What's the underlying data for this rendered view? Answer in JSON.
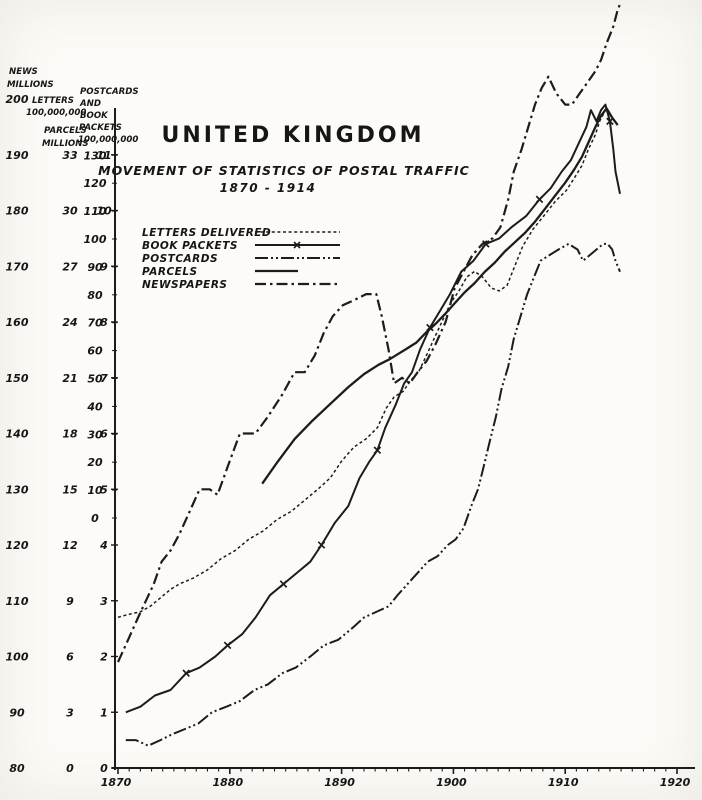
{
  "page": {
    "title": "UNITED KINGDOM",
    "subtitle": "MOVEMENT OF STATISTICS OF POSTAL TRAFFIC",
    "period": "1870 - 1914"
  },
  "axes_headers": {
    "news_line1": "NEWS",
    "news_line2": "MILLIONS",
    "letters_line1": "LETTERS",
    "letters_line2": "100,000,000",
    "parcels_line1": "PARCELS",
    "parcels_line2": "MILLIONS",
    "postcards_line1": "POSTCARDS",
    "postcards_line2": "AND",
    "postcards_line3": "BOOK",
    "postcards_line4": "PACKETS",
    "postcards_line5": "100,000,000"
  },
  "legend": {
    "items": [
      {
        "label": "LETTERS DELIVERED",
        "series": "letters"
      },
      {
        "label": "BOOK PACKETS",
        "series": "book_packets"
      },
      {
        "label": "POSTCARDS",
        "series": "postcards"
      },
      {
        "label": "PARCELS",
        "series": "parcels"
      },
      {
        "label": "NEWSPAPERS",
        "series": "newspapers"
      }
    ]
  },
  "chart_data": {
    "type": "line",
    "title": "United Kingdom — Movement of Statistics of Postal Traffic 1870-1914",
    "grid": false,
    "legend_position": "inside-upper-left",
    "x_axis": {
      "label_ticks": [
        1870,
        1880,
        1890,
        1900,
        1910,
        1920
      ],
      "range": [
        1870,
        1920
      ],
      "minor_tick_every_years": 1
    },
    "y_scales": [
      {
        "id": "news",
        "name": "Newspapers delivered (millions)",
        "col_x": 17,
        "ticks": [
          200,
          190,
          180,
          170,
          160,
          150,
          140,
          130,
          120,
          110,
          100,
          90,
          80
        ]
      },
      {
        "id": "parcels",
        "name": "Parcels (millions)",
        "col_x": 70,
        "ticks": [
          33,
          30,
          27,
          24,
          21,
          18,
          15,
          12,
          9,
          6,
          3,
          0
        ]
      },
      {
        "id": "letters",
        "name": "Letters delivered (scale ticks, header 100,000,000; printed zero sits mid-chart)",
        "col_x": 95,
        "ticks": [
          130,
          120,
          110,
          100,
          90,
          80,
          70,
          60,
          50,
          40,
          30,
          20,
          10,
          0
        ]
      },
      {
        "id": "postcards",
        "name": "Postcards and book packets (100,000,000)",
        "col_x": 104,
        "ticks": [
          11,
          10,
          9,
          8,
          7,
          6,
          5,
          4,
          3,
          2,
          1,
          0
        ]
      }
    ],
    "series": [
      {
        "name": "letters_delivered",
        "legend_label": "LETTERS DELIVERED",
        "scale": "letters",
        "line_style": "dashed",
        "points": [
          [
            1870,
            54
          ],
          [
            1870.9,
            55
          ],
          [
            1872,
            56
          ],
          [
            1872.9,
            58
          ],
          [
            1873.8,
            61
          ],
          [
            1874.7,
            64
          ],
          [
            1875.5,
            66
          ],
          [
            1876.7,
            68
          ],
          [
            1878,
            71
          ],
          [
            1879.2,
            75
          ],
          [
            1880.5,
            78
          ],
          [
            1881.7,
            82
          ],
          [
            1883,
            85
          ],
          [
            1884.2,
            89
          ],
          [
            1885.5,
            92
          ],
          [
            1886.7,
            96
          ],
          [
            1887.9,
            100
          ],
          [
            1889,
            104
          ],
          [
            1890,
            110
          ],
          [
            1891.1,
            115
          ],
          [
            1892.2,
            118
          ],
          [
            1893.2,
            122
          ],
          [
            1894,
            129
          ],
          [
            1894.7,
            133
          ],
          [
            1895.5,
            135
          ],
          [
            1896.2,
            139
          ],
          [
            1896.9,
            142
          ],
          [
            1897.6,
            148
          ],
          [
            1898.4,
            155
          ],
          [
            1899.1,
            161
          ],
          [
            1899.8,
            167
          ],
          [
            1900.5,
            171
          ],
          [
            1901.2,
            176
          ],
          [
            1901.9,
            178
          ],
          [
            1902.6,
            176
          ],
          [
            1903.4,
            172
          ],
          [
            1904.1,
            171
          ],
          [
            1904.8,
            173
          ],
          [
            1905.5,
            180
          ],
          [
            1906.2,
            187
          ],
          [
            1907.1,
            193
          ],
          [
            1908.1,
            198
          ],
          [
            1909.1,
            203
          ],
          [
            1910.1,
            207
          ],
          [
            1910.9,
            212
          ],
          [
            1911.5,
            216
          ],
          [
            1912.1,
            222
          ],
          [
            1912.7,
            227
          ],
          [
            1913.1,
            232
          ],
          [
            1913.5,
            235
          ]
        ]
      },
      {
        "name": "book_packets",
        "legend_label": "BOOK PACKETS",
        "scale": "postcards",
        "line_style": "solid-x",
        "marker_indices": [
          4,
          7,
          11,
          14,
          19,
          25,
          30,
          34,
          44
        ],
        "points": [
          [
            1870.7,
            1.0
          ],
          [
            1872,
            1.1
          ],
          [
            1873.3,
            1.3
          ],
          [
            1874.7,
            1.4
          ],
          [
            1876.1,
            1.7
          ],
          [
            1877.3,
            1.8
          ],
          [
            1878.7,
            2.0
          ],
          [
            1879.8,
            2.2
          ],
          [
            1881.1,
            2.4
          ],
          [
            1882.3,
            2.7
          ],
          [
            1883.6,
            3.1
          ],
          [
            1884.8,
            3.3
          ],
          [
            1886,
            3.5
          ],
          [
            1887.2,
            3.7
          ],
          [
            1888.2,
            4.0
          ],
          [
            1889.4,
            4.4
          ],
          [
            1890.6,
            4.7
          ],
          [
            1891.6,
            5.2
          ],
          [
            1892.5,
            5.5
          ],
          [
            1893.2,
            5.7
          ],
          [
            1893.9,
            6.1
          ],
          [
            1894.8,
            6.5
          ],
          [
            1895.6,
            6.9
          ],
          [
            1896.3,
            7.1
          ],
          [
            1897,
            7.5
          ],
          [
            1897.9,
            7.9
          ],
          [
            1898.8,
            8.2
          ],
          [
            1899.7,
            8.5
          ],
          [
            1900.7,
            8.9
          ],
          [
            1901.8,
            9.1
          ],
          [
            1902.9,
            9.4
          ],
          [
            1904.1,
            9.5
          ],
          [
            1905.2,
            9.7
          ],
          [
            1906.5,
            9.9
          ],
          [
            1907.7,
            10.2
          ],
          [
            1908.7,
            10.4
          ],
          [
            1909.7,
            10.7
          ],
          [
            1910.5,
            10.9
          ],
          [
            1911.2,
            11.2
          ],
          [
            1911.9,
            11.5
          ],
          [
            1912.3,
            11.8
          ],
          [
            1912.8,
            11.6
          ],
          [
            1913.2,
            11.8
          ],
          [
            1913.6,
            11.9
          ],
          [
            1914,
            11.6
          ],
          [
            1914.3,
            11.1
          ],
          [
            1914.5,
            10.7
          ],
          [
            1914.9,
            10.3
          ]
        ]
      },
      {
        "name": "postcards",
        "legend_label": "POSTCARDS",
        "scale": "postcards",
        "line_style": "dash-dot-dot",
        "points": [
          [
            1870.7,
            0.5
          ],
          [
            1871.6,
            0.5
          ],
          [
            1872.7,
            0.4
          ],
          [
            1873.8,
            0.5
          ],
          [
            1874.8,
            0.6
          ],
          [
            1876,
            0.7
          ],
          [
            1877.2,
            0.8
          ],
          [
            1878.4,
            1.0
          ],
          [
            1879.7,
            1.1
          ],
          [
            1880.9,
            1.2
          ],
          [
            1882.2,
            1.4
          ],
          [
            1883.4,
            1.5
          ],
          [
            1884.7,
            1.7
          ],
          [
            1885.9,
            1.8
          ],
          [
            1887.2,
            2.0
          ],
          [
            1888.4,
            2.2
          ],
          [
            1889.7,
            2.3
          ],
          [
            1890.9,
            2.5
          ],
          [
            1892,
            2.7
          ],
          [
            1893.1,
            2.8
          ],
          [
            1894.2,
            2.9
          ],
          [
            1895,
            3.1
          ],
          [
            1895.9,
            3.3
          ],
          [
            1896.8,
            3.5
          ],
          [
            1897.7,
            3.7
          ],
          [
            1898.6,
            3.8
          ],
          [
            1899.5,
            4.0
          ],
          [
            1900.2,
            4.1
          ],
          [
            1900.9,
            4.3
          ],
          [
            1901.6,
            4.7
          ],
          [
            1902.2,
            5.0
          ],
          [
            1902.7,
            5.4
          ],
          [
            1903.3,
            5.9
          ],
          [
            1903.8,
            6.3
          ],
          [
            1904.3,
            6.8
          ],
          [
            1904.9,
            7.2
          ],
          [
            1905.4,
            7.7
          ],
          [
            1906,
            8.1
          ],
          [
            1906.6,
            8.5
          ],
          [
            1907.2,
            8.8
          ],
          [
            1907.8,
            9.1
          ],
          [
            1908.6,
            9.2
          ],
          [
            1909.4,
            9.3
          ],
          [
            1910.3,
            9.4
          ],
          [
            1911.1,
            9.3
          ],
          [
            1911.6,
            9.1
          ],
          [
            1912.2,
            9.2
          ],
          [
            1912.8,
            9.3
          ],
          [
            1913.4,
            9.4
          ],
          [
            1913.8,
            9.4
          ],
          [
            1914.2,
            9.3
          ],
          [
            1914.5,
            9.1
          ],
          [
            1914.9,
            8.9
          ]
        ]
      },
      {
        "name": "parcels",
        "legend_label": "PARCELS",
        "scale": "parcels",
        "line_style": "solid",
        "points": [
          [
            1882.9,
            15.3
          ],
          [
            1884.3,
            16.5
          ],
          [
            1885.8,
            17.7
          ],
          [
            1887.4,
            18.7
          ],
          [
            1889,
            19.6
          ],
          [
            1890.6,
            20.5
          ],
          [
            1892,
            21.2
          ],
          [
            1893.3,
            21.7
          ],
          [
            1894.3,
            22.0
          ],
          [
            1895.1,
            22.3
          ],
          [
            1895.9,
            22.6
          ],
          [
            1896.7,
            22.9
          ],
          [
            1897.5,
            23.4
          ],
          [
            1898.4,
            23.9
          ],
          [
            1899.2,
            24.4
          ],
          [
            1900.1,
            25.0
          ],
          [
            1901,
            25.6
          ],
          [
            1901.9,
            26.1
          ],
          [
            1902.8,
            26.7
          ],
          [
            1903.7,
            27.2
          ],
          [
            1904.6,
            27.8
          ],
          [
            1905.5,
            28.3
          ],
          [
            1906.4,
            28.8
          ],
          [
            1907.3,
            29.4
          ],
          [
            1908.2,
            30.1
          ],
          [
            1909.1,
            30.8
          ],
          [
            1910,
            31.5
          ],
          [
            1910.8,
            32.2
          ],
          [
            1911.5,
            32.9
          ],
          [
            1912.1,
            33.7
          ],
          [
            1912.7,
            34.5
          ],
          [
            1913.2,
            35.1
          ],
          [
            1913.7,
            35.5
          ],
          [
            1914.2,
            35.0
          ],
          [
            1914.7,
            34.6
          ]
        ]
      },
      {
        "name": "newspapers",
        "legend_label": "NEWSPAPERS",
        "scale": "news",
        "line_style": "dash-dot",
        "points": [
          [
            1870,
            99
          ],
          [
            1870.9,
            103
          ],
          [
            1871.8,
            107
          ],
          [
            1872.5,
            110
          ],
          [
            1873.2,
            113
          ],
          [
            1873.9,
            117
          ],
          [
            1874.7,
            119
          ],
          [
            1875.5,
            122
          ],
          [
            1876.4,
            126
          ],
          [
            1877.3,
            130
          ],
          [
            1878.2,
            130
          ],
          [
            1878.9,
            129
          ],
          [
            1879.8,
            134
          ],
          [
            1880.9,
            140
          ],
          [
            1882.3,
            140
          ],
          [
            1883.4,
            143
          ],
          [
            1884.7,
            147
          ],
          [
            1885.8,
            151
          ],
          [
            1886.7,
            151
          ],
          [
            1887.6,
            154
          ],
          [
            1888.4,
            158
          ],
          [
            1889.2,
            161
          ],
          [
            1890.1,
            163
          ],
          [
            1891.2,
            164
          ],
          [
            1892.2,
            165
          ],
          [
            1893.1,
            165
          ],
          [
            1893.6,
            161
          ],
          [
            1894.2,
            155
          ],
          [
            1894.7,
            149
          ],
          [
            1895.4,
            150
          ],
          [
            1896.1,
            149
          ],
          [
            1896.8,
            151
          ],
          [
            1897.6,
            153
          ],
          [
            1898.4,
            156
          ],
          [
            1899.3,
            160
          ],
          [
            1900.1,
            166
          ],
          [
            1900.9,
            169
          ],
          [
            1901.7,
            172
          ],
          [
            1902.6,
            174
          ],
          [
            1903.5,
            175
          ],
          [
            1904.2,
            177
          ],
          [
            1904.9,
            182
          ],
          [
            1905.4,
            187
          ],
          [
            1906.1,
            191
          ],
          [
            1906.7,
            195
          ],
          [
            1907.3,
            199
          ],
          [
            1907.9,
            202
          ],
          [
            1908.5,
            204
          ],
          [
            1909.2,
            201
          ],
          [
            1910,
            199
          ],
          [
            1910.6,
            199
          ],
          [
            1911.3,
            201
          ],
          [
            1912,
            203
          ],
          [
            1912.7,
            205
          ],
          [
            1913.2,
            207
          ],
          [
            1913.7,
            210
          ],
          [
            1914.3,
            213
          ],
          [
            1914.7,
            216
          ],
          [
            1914.9,
            217
          ]
        ]
      }
    ]
  },
  "style": {
    "ink": "#1c1c1c",
    "paper": "#fcfbf7"
  }
}
